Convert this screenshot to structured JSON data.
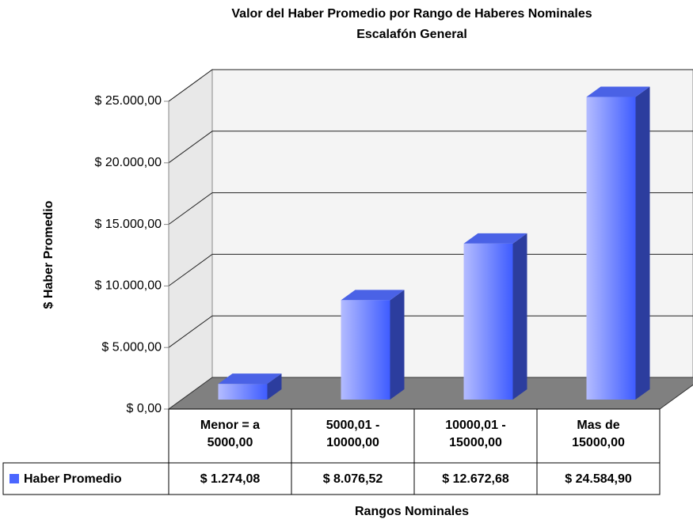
{
  "chart_data": {
    "type": "bar3d",
    "title": "Valor del Haber Promedio por Rango de Haberes Nominales",
    "subtitle": "Escalafón General",
    "x_label": "Rangos Nominales",
    "y_label": "$ Haber Promedio",
    "categories": [
      "Menor = a 5000,00",
      "5000,01 - 10000,00",
      "10000,01 - 15000,00",
      "Mas de 15000,00"
    ],
    "series": [
      {
        "name": "Haber Promedio",
        "color": "#4a66ff",
        "values": [
          1274.08,
          8076.52,
          12672.68,
          24584.9
        ],
        "value_labels": [
          "$ 1.274,08",
          "$ 8.076,52",
          "$ 12.672,68",
          "$ 24.584,90"
        ]
      }
    ],
    "ylim": [
      0,
      25000
    ],
    "yticks": [
      {
        "value": 0,
        "label": "$ 0,00"
      },
      {
        "value": 5000,
        "label": "$ 5.000,00"
      },
      {
        "value": 10000,
        "label": "$ 10.000,00"
      },
      {
        "value": 15000,
        "label": "$ 15.000,00"
      },
      {
        "value": 20000,
        "label": "$ 20.000,00"
      },
      {
        "value": 25000,
        "label": "$ 25.000,00"
      }
    ],
    "grid": true,
    "data_table": true
  }
}
